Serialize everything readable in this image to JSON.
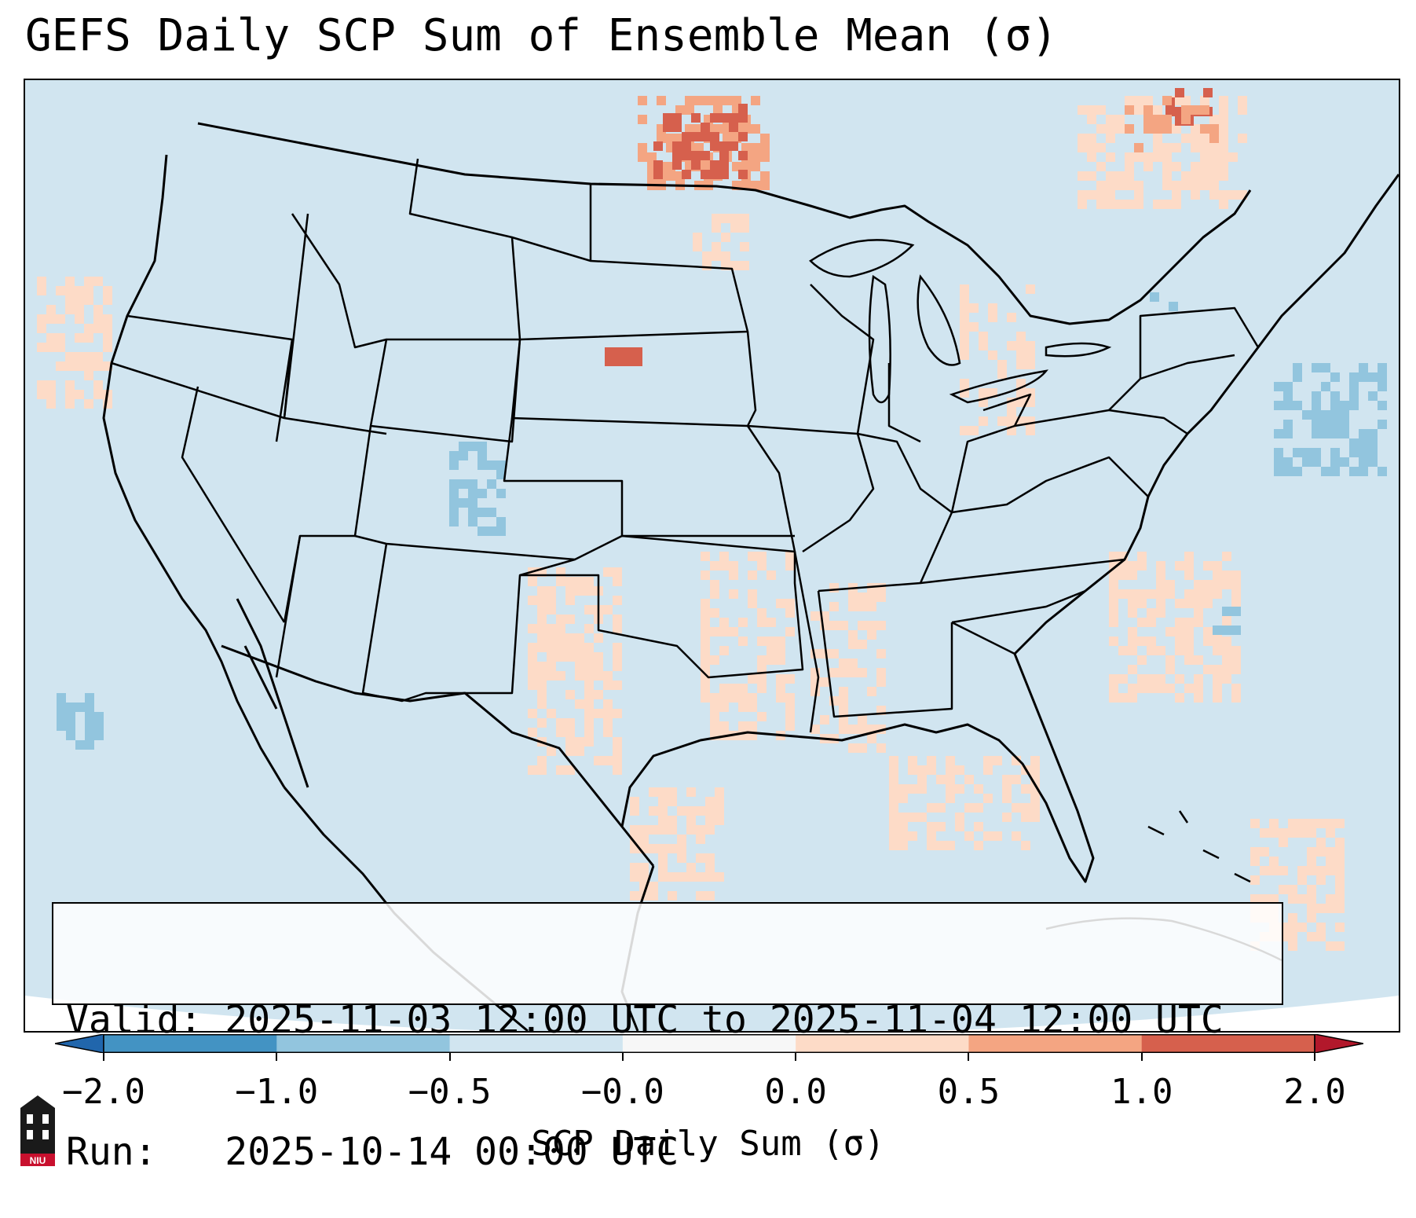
{
  "title": "GEFS Daily SCP Sum of Ensemble Mean (σ)",
  "valid_box": {
    "valid_line": "Valid: 2025-11-03 12:00 UTC to 2025-11-04 12:00 UTC",
    "run_line": "Run:   2025-10-14 00:00 UTC"
  },
  "colorbar": {
    "label": "SCP Daily Sum (σ)",
    "ticks": [
      "−2.0",
      "−1.0",
      "−0.5",
      "−0.0",
      "0.0",
      "0.5",
      "1.0",
      "2.0"
    ],
    "colors": {
      "neg_extend": "#2166ac",
      "neg_2_1": "#4393c3",
      "neg_1_05": "#92c5de",
      "neg_05_0": "#d1e5f0",
      "zero_band": "#f7f7f7",
      "pos_0_05": "#fddbc7",
      "pos_05_1": "#f4a582",
      "pos_1_2": "#d6604d",
      "pos_extend": "#b2182b"
    }
  },
  "map": {
    "background_color": "#d1e5f0",
    "ocean_outside_projection": "#ffffff",
    "boundary_color": "#000000"
  },
  "logo": {
    "text": "NIU",
    "icon": "niu-tower-logo"
  }
}
